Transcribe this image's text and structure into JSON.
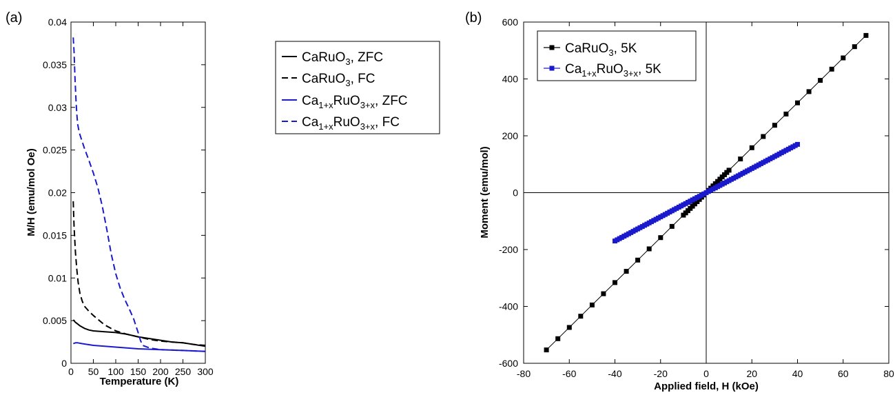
{
  "chart_data": [
    {
      "type": "line",
      "panel_label": "(a)",
      "xlabel": "Temperature (K)",
      "ylabel": "M/H (emu/mol Oe)",
      "xlim": [
        0,
        300
      ],
      "ylim": [
        0,
        0.04
      ],
      "xticks": [
        "0",
        "50",
        "100",
        "150",
        "200",
        "250",
        "300"
      ],
      "yticks": [
        "0",
        "0.005",
        "0.01",
        "0.015",
        "0.02",
        "0.025",
        "0.03",
        "0.035",
        "0.04"
      ],
      "grid": false,
      "legend": {
        "placement": "top-right",
        "entries": [
          {
            "base": "CaRuO",
            "sub": "3",
            "suffix": ", ZFC"
          },
          {
            "base": "CaRuO",
            "sub": "3",
            "suffix": ", FC"
          },
          {
            "pre": "Ca",
            "sub1": "1+x",
            "mid": "RuO",
            "sub2": "3+x",
            "suffix": ", ZFC"
          },
          {
            "pre": "Ca",
            "sub1": "1+x",
            "mid": "RuO",
            "sub2": "3+x",
            "suffix": ", FC"
          }
        ]
      },
      "series": [
        {
          "color": "#000000",
          "dash": false,
          "x": [
            5,
            10,
            15,
            20,
            30,
            40,
            50,
            75,
            100,
            125,
            150,
            175,
            200,
            225,
            250,
            275,
            300
          ],
          "y": [
            0.0051,
            0.0048,
            0.0046,
            0.0044,
            0.0041,
            0.0039,
            0.0038,
            0.0037,
            0.0036,
            0.0034,
            0.0031,
            0.0029,
            0.0027,
            0.0025,
            0.0024,
            0.0022,
            0.002
          ]
        },
        {
          "color": "#000000",
          "dash": true,
          "x": [
            5,
            7,
            10,
            13,
            16,
            20,
            25,
            30,
            40,
            50,
            75,
            100,
            125,
            150,
            175,
            200,
            225,
            250,
            275,
            300
          ],
          "y": [
            0.019,
            0.016,
            0.013,
            0.011,
            0.0095,
            0.0082,
            0.0073,
            0.0067,
            0.0061,
            0.0056,
            0.0045,
            0.0038,
            0.0034,
            0.0031,
            0.0028,
            0.0026,
            0.0025,
            0.0024,
            0.0022,
            0.0021
          ]
        },
        {
          "color": "#1a1acc",
          "dash": false,
          "x": [
            5,
            10,
            15,
            25,
            50,
            100,
            150,
            200,
            250,
            300
          ],
          "y": [
            0.0023,
            0.0024,
            0.0024,
            0.0023,
            0.0021,
            0.0019,
            0.0017,
            0.0016,
            0.0015,
            0.0014
          ]
        },
        {
          "color": "#1a1acc",
          "dash": true,
          "x": [
            5,
            7,
            9,
            11,
            13,
            15,
            18,
            20,
            25,
            30,
            40,
            50,
            60,
            70,
            80,
            90,
            100,
            110,
            120,
            130,
            140,
            150,
            155,
            160,
            175,
            200,
            250,
            300
          ],
          "y": [
            0.0382,
            0.0365,
            0.0335,
            0.031,
            0.0292,
            0.028,
            0.0272,
            0.0268,
            0.026,
            0.0252,
            0.0238,
            0.0223,
            0.0206,
            0.0184,
            0.0157,
            0.0128,
            0.0105,
            0.0088,
            0.0075,
            0.0064,
            0.0052,
            0.0036,
            0.0027,
            0.0021,
            0.0018,
            0.0016,
            0.0015,
            0.0014
          ]
        }
      ]
    },
    {
      "type": "line",
      "panel_label": "(b)",
      "xlabel": "Applied field, H (kOe)",
      "ylabel": "Moment (emu/mol)",
      "xlim": [
        -80,
        80
      ],
      "ylim": [
        -600,
        600
      ],
      "xticks": [
        "-80",
        "-60",
        "-40",
        "-20",
        "0",
        "20",
        "40",
        "60",
        "80"
      ],
      "yticks": [
        "-600",
        "-400",
        "-200",
        "0",
        "200",
        "400",
        "600"
      ],
      "grid": false,
      "legend": {
        "placement": "top-left",
        "entries": [
          {
            "base": "CaRuO",
            "sub": "3",
            "suffix": ", 5K"
          },
          {
            "pre": "Ca",
            "sub1": "1+x",
            "mid": "RuO",
            "sub2": "3+x",
            "suffix": ", 5K"
          }
        ]
      },
      "series": [
        {
          "color": "#000000",
          "marker": "square",
          "slope": 7.9,
          "x_range": [
            -70,
            70
          ],
          "step": 5,
          "dense_range": [
            -10,
            10
          ],
          "dense_step": 1
        },
        {
          "color": "#1a1acc",
          "marker": "square",
          "slope": 4.25,
          "x_range": [
            -40,
            40
          ],
          "step": 1
        }
      ]
    }
  ]
}
